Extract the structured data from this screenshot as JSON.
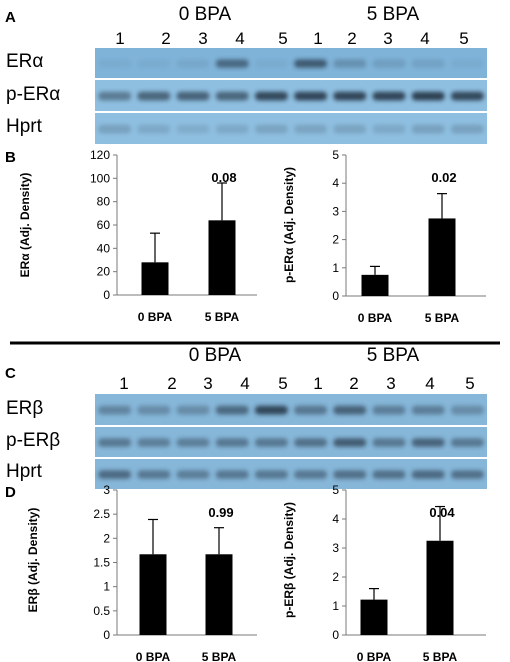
{
  "panels": {
    "A": "A",
    "B": "B",
    "C": "C",
    "D": "D"
  },
  "blots": [
    {
      "groups": [
        "0 BPA",
        "5 BPA"
      ],
      "lanes": [
        "1",
        "2",
        "3",
        "4",
        "5",
        "1",
        "2",
        "3",
        "4",
        "5"
      ],
      "rows": [
        {
          "label": "ERα",
          "color": "#7fb3d8",
          "bands": [
            0.05,
            0.05,
            0.08,
            0.55,
            0.05,
            0.65,
            0.25,
            0.15,
            0.12,
            0.05
          ]
        },
        {
          "label": "p-ERα",
          "color": "#8fbfe0",
          "bands": [
            0.45,
            0.6,
            0.62,
            0.6,
            0.8,
            0.82,
            0.82,
            0.82,
            0.85,
            0.8
          ]
        },
        {
          "label": "Hprt",
          "color": "#8fbfe0",
          "bands": [
            0.2,
            0.15,
            0.12,
            0.15,
            0.18,
            0.18,
            0.18,
            0.15,
            0.2,
            0.2
          ]
        }
      ]
    },
    {
      "groups": [
        "0 BPA",
        "5 BPA"
      ],
      "lanes": [
        "1",
        "2",
        "3",
        "4",
        "5",
        "1",
        "2",
        "3",
        "4",
        "5"
      ],
      "rows": [
        {
          "label": "ERβ",
          "color": "#86b6d8",
          "bands": [
            0.35,
            0.3,
            0.3,
            0.55,
            0.8,
            0.45,
            0.6,
            0.4,
            0.4,
            0.3
          ]
        },
        {
          "label": "p-ERβ",
          "color": "#86b6d8",
          "bands": [
            0.45,
            0.4,
            0.4,
            0.45,
            0.45,
            0.5,
            0.65,
            0.45,
            0.6,
            0.45
          ]
        },
        {
          "label": "Hprt",
          "color": "#86b6d8",
          "bands": [
            0.55,
            0.45,
            0.4,
            0.45,
            0.45,
            0.45,
            0.5,
            0.5,
            0.55,
            0.5
          ]
        }
      ]
    }
  ],
  "chart_data": [
    {
      "type": "bar",
      "categories": [
        "0 BPA",
        "5 BPA"
      ],
      "values": [
        28,
        64
      ],
      "errors": [
        25,
        32
      ],
      "ylabel": "ERα (Adj. Density)",
      "ylim": [
        0,
        120
      ],
      "yticks": [
        0,
        20,
        40,
        60,
        80,
        100,
        120
      ],
      "annotation": "0.08"
    },
    {
      "type": "bar",
      "categories": [
        "0 BPA",
        "5 BPA"
      ],
      "values": [
        0.75,
        2.75
      ],
      "errors": [
        0.3,
        0.88
      ],
      "ylabel": "p-ERα (Adj. Density)",
      "ylim": [
        0,
        5
      ],
      "yticks": [
        0,
        1,
        2,
        3,
        4,
        5
      ],
      "annotation": "0.02"
    },
    {
      "type": "bar",
      "categories": [
        "0 BPA",
        "5 BPA"
      ],
      "values": [
        1.67,
        1.67
      ],
      "errors": [
        0.72,
        0.55
      ],
      "ylabel": "ERβ (Adj. Density)",
      "ylim": [
        0,
        3
      ],
      "yticks": [
        "0",
        "0.5",
        "1",
        "1.5",
        "2",
        "2.5",
        "3"
      ],
      "annotation": "0.99"
    },
    {
      "type": "bar",
      "categories": [
        "0 BPA",
        "5 BPA"
      ],
      "values": [
        1.22,
        3.25
      ],
      "errors": [
        0.38,
        1.18
      ],
      "ylabel": "p-ERβ (Adj. Density)",
      "ylim": [
        0,
        5
      ],
      "yticks": [
        0,
        1,
        2,
        3,
        4,
        5
      ],
      "annotation": "0.04"
    }
  ]
}
